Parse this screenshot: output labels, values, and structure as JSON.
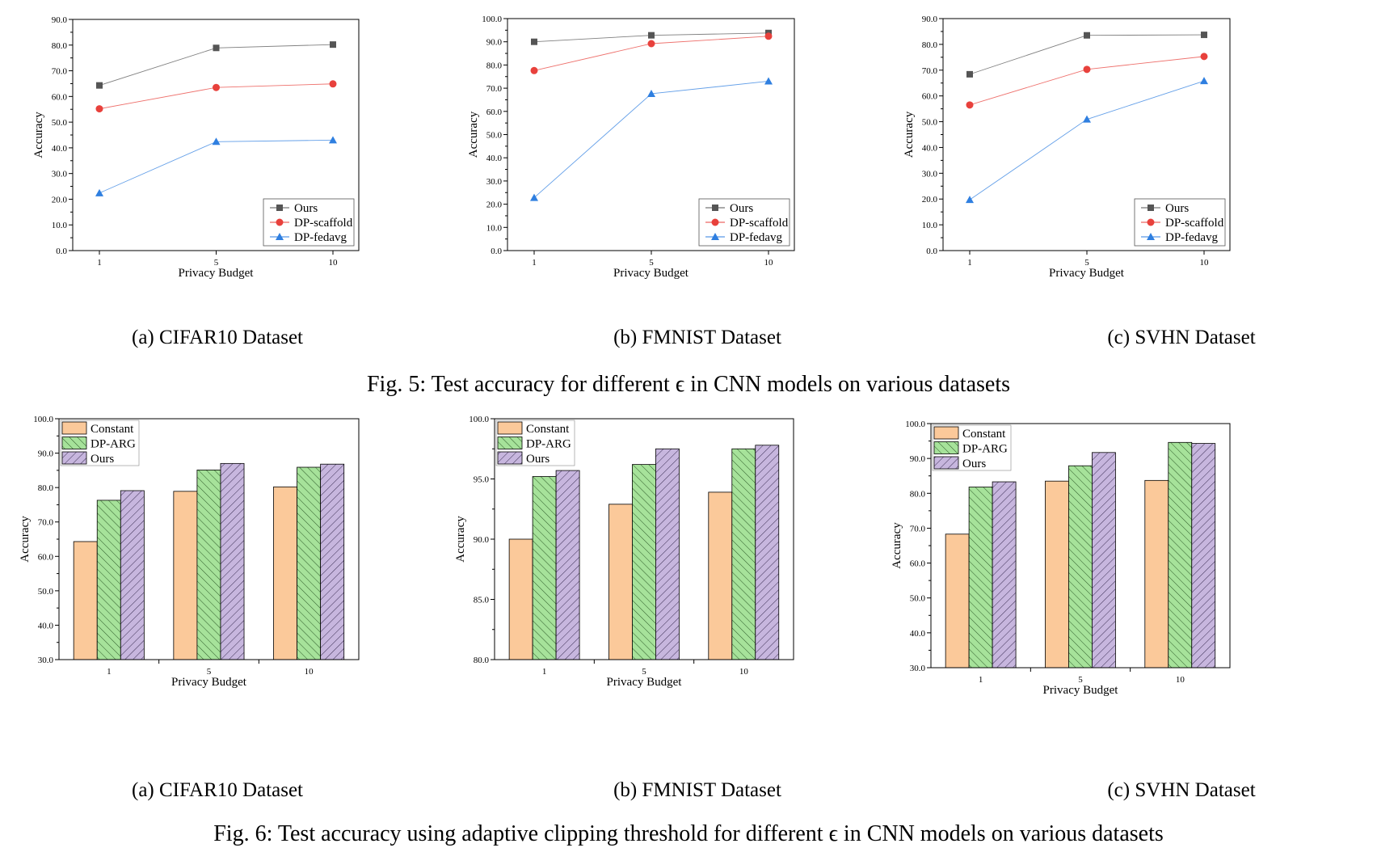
{
  "figure5": {
    "caption": "Fig. 5: Test accuracy for different ϵ in CNN models on various datasets",
    "subcaptions": [
      "(a) CIFAR10 Dataset",
      "(b) FMNIST Dataset",
      "(c) SVHN Dataset"
    ]
  },
  "figure6": {
    "caption": "Fig. 6: Test accuracy using adaptive clipping threshold for different ϵ in CNN models on various datasets",
    "subcaptions": [
      "(a) CIFAR10 Dataset",
      "(b) FMNIST Dataset",
      "(c) SVHN Dataset"
    ]
  },
  "colors": {
    "ours_line": "#555555",
    "dp_scaffold": "#e8413c",
    "dp_fedavg": "#2f7fe0",
    "constant_bar": "#fbc99a",
    "dparg_bar": "#a6e29a",
    "ours_bar": "#c7b6de"
  },
  "chart_data": [
    {
      "type": "line",
      "xlabel": "Privacy Budget",
      "ylabel": "Accuracy",
      "categories": [
        "1",
        "5",
        "10"
      ],
      "ylim": [
        0,
        90
      ],
      "yticks": [
        "0.0",
        "10.0",
        "20.0",
        "30.0",
        "40.0",
        "50.0",
        "60.0",
        "70.0",
        "80.0",
        "90.0"
      ],
      "legend_position": "bottom-right",
      "series": [
        {
          "name": "Ours",
          "marker": "square",
          "values": [
            64.3,
            78.9,
            80.2
          ]
        },
        {
          "name": "DP-scaffold",
          "marker": "circle",
          "values": [
            55.2,
            63.5,
            64.9
          ]
        },
        {
          "name": "DP-fedavg",
          "marker": "triangle",
          "values": [
            22.4,
            42.4,
            43.0
          ]
        }
      ]
    },
    {
      "type": "line",
      "xlabel": "Privacy Budget",
      "ylabel": "Accuracy",
      "categories": [
        "1",
        "5",
        "10"
      ],
      "ylim": [
        0,
        100
      ],
      "yticks": [
        "0.0",
        "10.0",
        "20.0",
        "30.0",
        "40.0",
        "50.0",
        "60.0",
        "70.0",
        "80.0",
        "90.0",
        "100.0"
      ],
      "legend_position": "bottom-right",
      "series": [
        {
          "name": "Ours",
          "marker": "square",
          "values": [
            90.0,
            92.8,
            93.8
          ]
        },
        {
          "name": "DP-scaffold",
          "marker": "circle",
          "values": [
            77.6,
            89.2,
            92.4
          ]
        },
        {
          "name": "DP-fedavg",
          "marker": "triangle",
          "values": [
            22.8,
            67.6,
            73.0
          ]
        }
      ]
    },
    {
      "type": "line",
      "xlabel": "Privacy Budget",
      "ylabel": "Accuracy",
      "categories": [
        "1",
        "5",
        "10"
      ],
      "ylim": [
        0,
        90
      ],
      "yticks": [
        "0.0",
        "10.0",
        "20.0",
        "30.0",
        "40.0",
        "50.0",
        "60.0",
        "70.0",
        "80.0",
        "90.0"
      ],
      "legend_position": "bottom-right",
      "series": [
        {
          "name": "Ours",
          "marker": "square",
          "values": [
            68.4,
            83.5,
            83.7
          ]
        },
        {
          "name": "DP-scaffold",
          "marker": "circle",
          "values": [
            56.5,
            70.3,
            75.3
          ]
        },
        {
          "name": "DP-fedavg",
          "marker": "triangle",
          "values": [
            19.7,
            50.9,
            65.8
          ]
        }
      ]
    },
    {
      "type": "bar",
      "xlabel": "Privacy Budget",
      "ylabel": "Accuracy",
      "categories": [
        "1",
        "5",
        "10"
      ],
      "ylim": [
        30,
        100
      ],
      "yticks": [
        "30.0",
        "40.0",
        "50.0",
        "60.0",
        "70.0",
        "80.0",
        "90.0",
        "100.0"
      ],
      "legend_position": "top-left",
      "series": [
        {
          "name": "Constant",
          "pattern": "solid",
          "values": [
            64.3,
            78.9,
            80.2
          ]
        },
        {
          "name": "DP-ARG",
          "pattern": "hatch-right",
          "values": [
            76.3,
            85.1,
            85.9
          ]
        },
        {
          "name": "Ours",
          "pattern": "hatch-left",
          "values": [
            79.1,
            87.0,
            86.8
          ]
        }
      ]
    },
    {
      "type": "bar",
      "xlabel": "Privacy Budget",
      "ylabel": "Accuracy",
      "categories": [
        "1",
        "5",
        "10"
      ],
      "ylim": [
        80,
        100
      ],
      "yticks": [
        "80.0",
        "85.0",
        "90.0",
        "95.0",
        "100.0"
      ],
      "legend_position": "top-left",
      "series": [
        {
          "name": "Constant",
          "pattern": "solid",
          "values": [
            90.0,
            92.9,
            93.9
          ]
        },
        {
          "name": "DP-ARG",
          "pattern": "hatch-right",
          "values": [
            95.2,
            96.2,
            97.5
          ]
        },
        {
          "name": "Ours",
          "pattern": "hatch-left",
          "values": [
            95.7,
            97.5,
            97.8
          ]
        }
      ]
    },
    {
      "type": "bar",
      "xlabel": "Privacy Budget",
      "ylabel": "Accuracy",
      "categories": [
        "1",
        "5",
        "10"
      ],
      "ylim": [
        30,
        100
      ],
      "yticks": [
        "30.0",
        "40.0",
        "50.0",
        "60.0",
        "70.0",
        "80.0",
        "90.0",
        "100.0"
      ],
      "legend_position": "top-left",
      "series": [
        {
          "name": "Constant",
          "pattern": "solid",
          "values": [
            68.3,
            83.5,
            83.7
          ]
        },
        {
          "name": "DP-ARG",
          "pattern": "hatch-right",
          "values": [
            81.8,
            87.9,
            94.6
          ]
        },
        {
          "name": "Ours",
          "pattern": "hatch-left",
          "values": [
            83.3,
            91.7,
            94.3
          ]
        }
      ]
    }
  ]
}
